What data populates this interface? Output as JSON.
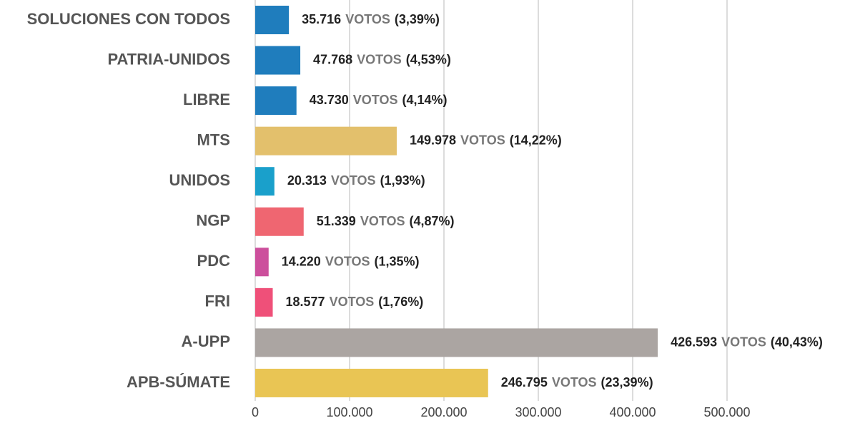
{
  "chart_data": {
    "type": "barh",
    "categories": [
      "SOLUCIONES CON TODOS",
      "PATRIA-UNIDOS",
      "LIBRE",
      "MTS",
      "UNIDOS",
      "NGP",
      "PDC",
      "FRI",
      "A-UPP",
      "APB-SÚMATE"
    ],
    "values": [
      35716,
      47768,
      43730,
      149978,
      20313,
      51339,
      14220,
      18577,
      426593,
      246795
    ],
    "value_labels": [
      "35.716",
      "47.768",
      "43.730",
      "149.978",
      "20.313",
      "51.339",
      "14.220",
      "18.577",
      "426.593",
      "246.795"
    ],
    "unit_label": "VOTOS",
    "percent_labels": [
      "(3,39%)",
      "(4,53%)",
      "(4,14%)",
      "(14,22%)",
      "(1,93%)",
      "(4,87%)",
      "(1,35%)",
      "(1,76%)",
      "(40,43%)",
      "(23,39%)"
    ],
    "colors": [
      "#1f7dbd",
      "#1f7dbd",
      "#1f7dbd",
      "#e3c06c",
      "#1aa0cb",
      "#ef6671",
      "#cc4f9c",
      "#ef5079",
      "#aba5a2",
      "#e9c554"
    ],
    "xlim": [
      0,
      600000
    ],
    "xticks": [
      0,
      {
        "value": 100000,
        "label": "100.000"
      },
      {
        "value": 200000,
        "label": "200.000"
      },
      {
        "value": 300000,
        "label": "300.000"
      },
      {
        "value": 400000,
        "label": "400.000"
      },
      {
        "value": 500000,
        "label": "500.000"
      }
    ],
    "grid": true
  }
}
